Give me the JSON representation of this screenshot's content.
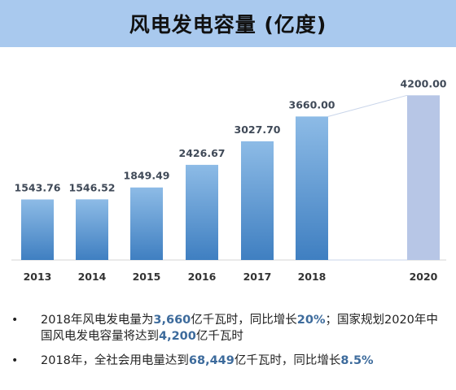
{
  "title": "风电发电容量 (亿度)",
  "chart_data": {
    "type": "bar",
    "categories": [
      "2013",
      "2014",
      "2015",
      "2016",
      "2017",
      "2018",
      "2020"
    ],
    "values": [
      1543.76,
      1546.52,
      1849.49,
      2426.67,
      3027.7,
      3660.0,
      4200.0
    ],
    "value_labels": [
      "1543.76",
      "1546.52",
      "1849.49",
      "2426.67",
      "3027.70",
      "3660.00",
      "4200.00"
    ],
    "projected_index": 6,
    "ylim": [
      0,
      4600
    ],
    "grid": false,
    "legend": "none",
    "xlabel": "",
    "ylabel": "",
    "colors": {
      "bar_top": "#8dbbe6",
      "bar_bottom": "#3f7fc1",
      "projected_bar": "#b7c6e6",
      "value_label": "#404a58",
      "tick_label": "#333333"
    }
  },
  "notes": [
    {
      "segments": [
        {
          "text": "2018年风电发电量为",
          "hl": false
        },
        {
          "text": "3,660",
          "hl": true
        },
        {
          "text": "亿千瓦时，同比增长",
          "hl": false
        },
        {
          "text": "20%",
          "hl": true
        },
        {
          "text": "；国家规划2020年中国风电发电容量将达到",
          "hl": false
        },
        {
          "text": "4,200",
          "hl": true
        },
        {
          "text": "亿千瓦时",
          "hl": false
        }
      ]
    },
    {
      "segments": [
        {
          "text": "2018年，全社会用电量达到",
          "hl": false
        },
        {
          "text": "68,449",
          "hl": true
        },
        {
          "text": "亿千瓦时，同比增长",
          "hl": false
        },
        {
          "text": "8.5%",
          "hl": true
        }
      ]
    }
  ],
  "bullet_symbol": "•"
}
